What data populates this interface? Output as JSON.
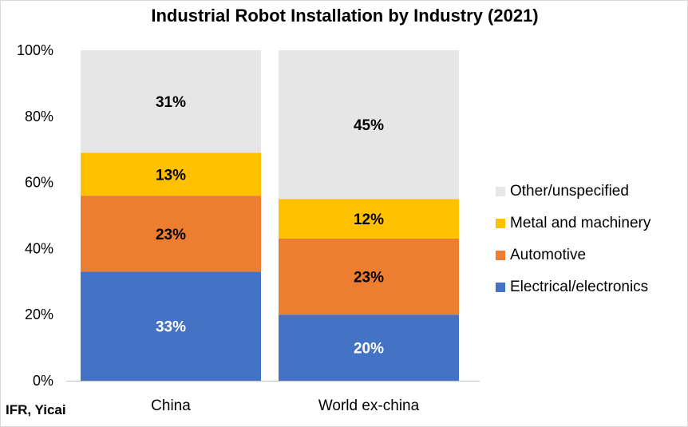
{
  "chart_data": {
    "type": "bar",
    "stacked": true,
    "title": "Industrial Robot Installation by Industry (2021)",
    "source": "IFR, Yicai",
    "categories": [
      "China",
      "World ex-china"
    ],
    "ylim": [
      0,
      100
    ],
    "yticks": [
      "0%",
      "20%",
      "40%",
      "60%",
      "80%",
      "100%"
    ],
    "ytick_values": [
      0,
      20,
      40,
      60,
      80,
      100
    ],
    "grid": false,
    "legend_position": "right",
    "series": [
      {
        "name": "Electrical/electronics",
        "color": "#4472C4",
        "label_color": "#ffffff",
        "values": [
          33,
          20
        ],
        "labels": [
          "33%",
          "20%"
        ]
      },
      {
        "name": "Automotive",
        "color": "#ED7D31",
        "label_color": "#000000",
        "values": [
          23,
          23
        ],
        "labels": [
          "23%",
          "23%"
        ]
      },
      {
        "name": "Metal and machinery",
        "color": "#FFC000",
        "label_color": "#000000",
        "values": [
          13,
          12
        ],
        "labels": [
          "13%",
          "12%"
        ]
      },
      {
        "name": "Other/unspecified",
        "color": "#E7E6E6",
        "label_color": "#000000",
        "values": [
          31,
          45
        ],
        "labels": [
          "31%",
          "45%"
        ]
      }
    ],
    "legend_order": [
      "Other/unspecified",
      "Metal and machinery",
      "Automotive",
      "Electrical/electronics"
    ]
  }
}
